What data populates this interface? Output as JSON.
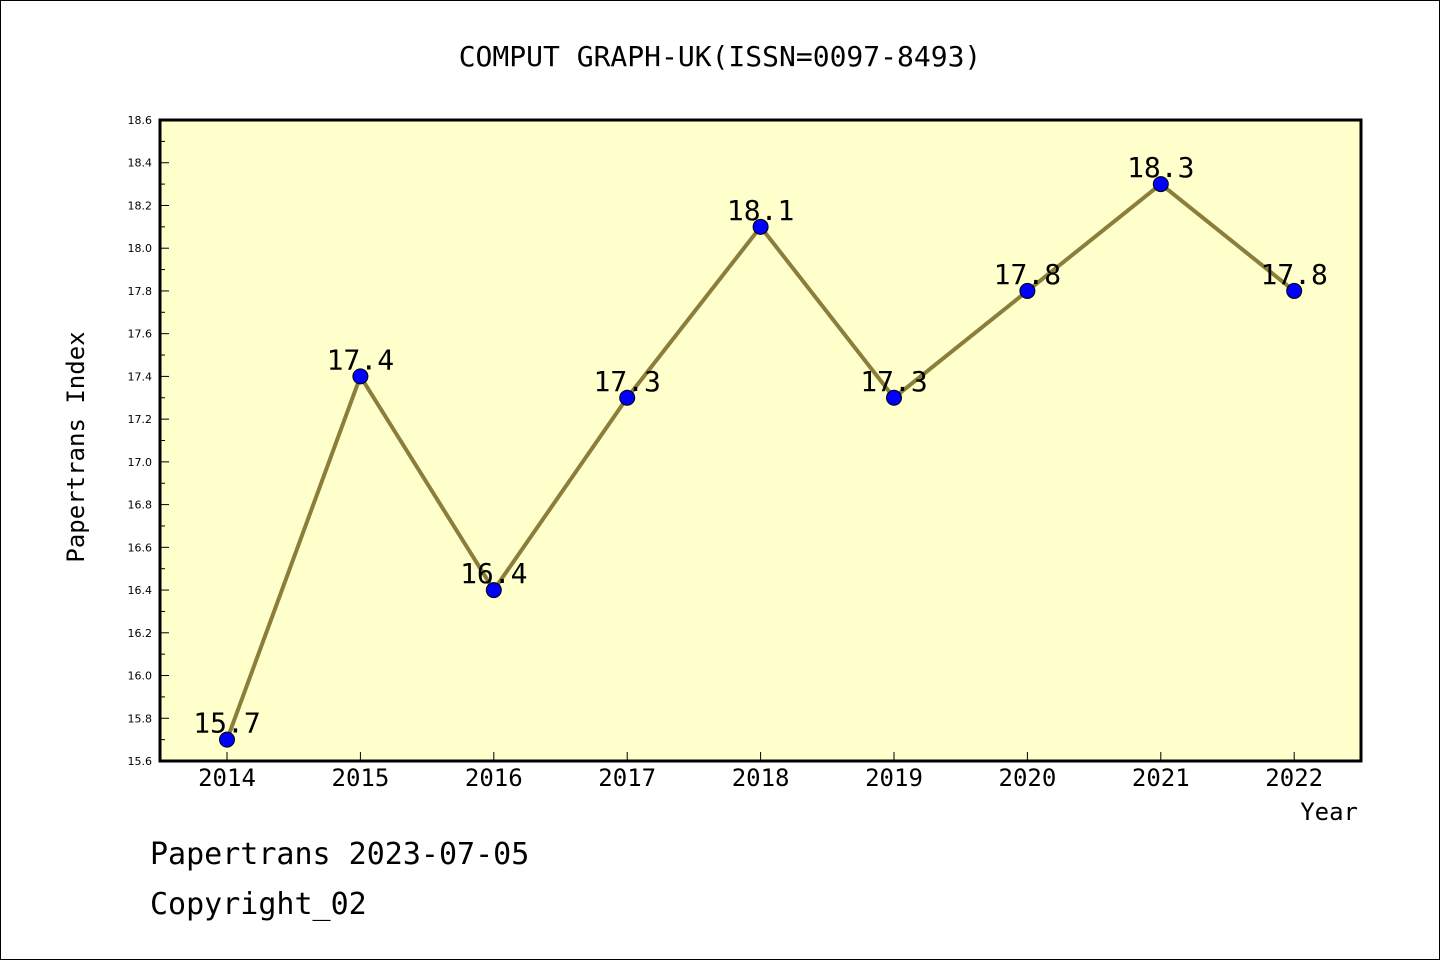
{
  "chart_data": {
    "type": "line",
    "title": "COMPUT GRAPH-UK(ISSN=0097-8493)",
    "xlabel": "Year",
    "ylabel": "Papertrans Index",
    "categories": [
      "2014",
      "2015",
      "2016",
      "2017",
      "2018",
      "2019",
      "2020",
      "2021",
      "2022"
    ],
    "values": [
      15.7,
      17.4,
      16.4,
      17.3,
      18.1,
      17.3,
      17.8,
      18.3,
      17.8
    ],
    "data_labels": [
      "15.7",
      "17.4",
      "16.4",
      "17.3",
      "18.1",
      "17.3",
      "17.8",
      "18.3",
      "17.8"
    ],
    "ylim": [
      15.6,
      18.6
    ],
    "y_ticks": [
      "15.6",
      "15.8",
      "16.0",
      "16.2",
      "16.4",
      "16.6",
      "16.8",
      "17.0",
      "17.2",
      "17.4",
      "17.6",
      "17.8",
      "18.0",
      "18.2",
      "18.4",
      "18.6"
    ],
    "grid": false,
    "colors": {
      "plot_background": "#ffffcc",
      "line": "#8b7d3a",
      "marker": "#0000ff"
    }
  },
  "footer": {
    "line1": "Papertrans 2023-07-05",
    "line2": "Copyright_02"
  }
}
